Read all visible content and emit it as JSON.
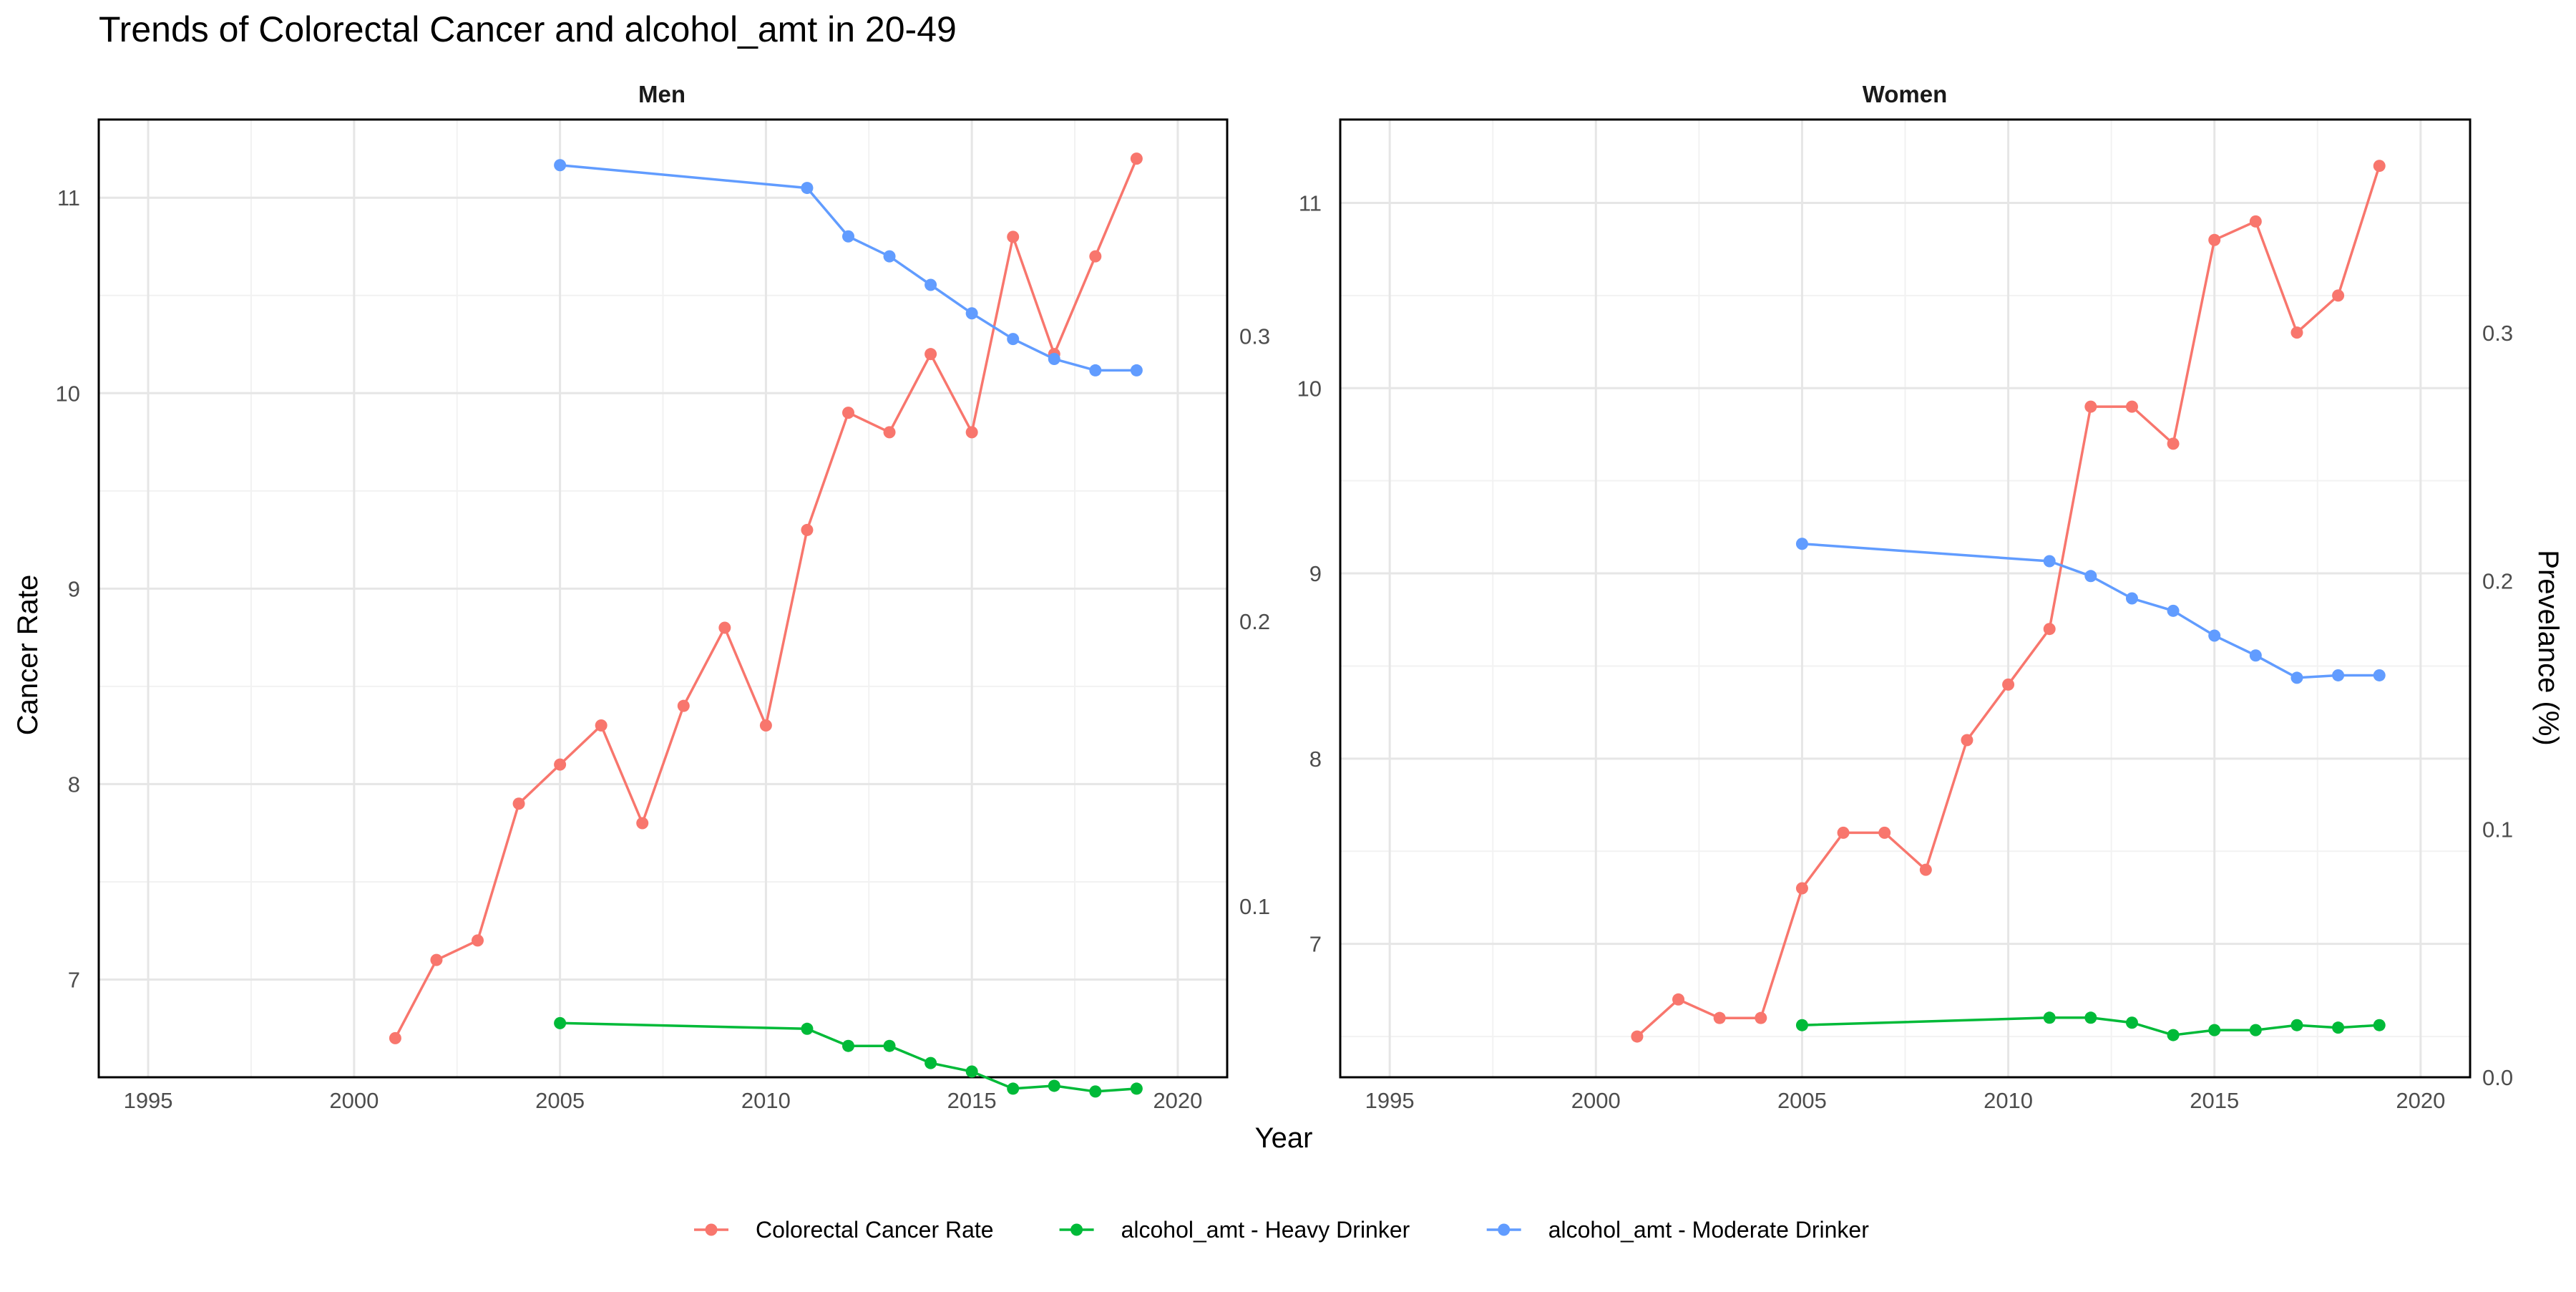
{
  "title": "Trends of Colorectal Cancer and alcohol_amt in 20-49",
  "xlabel": "Year",
  "ylabel_left": "Cancer Rate",
  "ylabel_right": "Prevelance (%)",
  "colors": {
    "cancer": "#F8766D",
    "heavy": "#00BA38",
    "moderate": "#619CFF"
  },
  "legend": [
    {
      "key": "cancer",
      "label": "Colorectal Cancer Rate"
    },
    {
      "key": "heavy",
      "label": "alcohol_amt - Heavy Drinker"
    },
    {
      "key": "moderate",
      "label": "alcohol_amt - Moderate Drinker"
    }
  ],
  "chart_data": [
    {
      "type": "line",
      "panel": "Men",
      "xlim": [
        1993.8,
        2021.2
      ],
      "x_ticks": [
        1995,
        2000,
        2005,
        2010,
        2015,
        2020
      ],
      "y_left_lim": [
        6.5,
        11.4
      ],
      "y_left_ticks": [
        7,
        8,
        9,
        10,
        11
      ],
      "y_right_lim": [
        0.04,
        0.376
      ],
      "y_right_ticks": [
        0.1,
        0.2,
        0.3
      ],
      "series": [
        {
          "name": "Colorectal Cancer Rate",
          "key": "cancer",
          "axis": "left",
          "x": [
            2001,
            2002,
            2003,
            2004,
            2005,
            2006,
            2007,
            2008,
            2009,
            2010,
            2011,
            2012,
            2013,
            2014,
            2015,
            2016,
            2017,
            2018,
            2019
          ],
          "y": [
            6.7,
            7.1,
            7.2,
            7.9,
            8.1,
            8.3,
            7.8,
            8.4,
            8.8,
            8.3,
            9.3,
            9.9,
            9.8,
            10.2,
            9.8,
            10.8,
            10.2,
            10.7,
            11.2
          ]
        },
        {
          "name": "alcohol_amt - Heavy Drinker",
          "key": "heavy",
          "axis": "right",
          "x": [
            2005,
            2011,
            2012,
            2013,
            2014,
            2015,
            2016,
            2017,
            2018,
            2019
          ],
          "y": [
            0.059,
            0.057,
            0.051,
            0.051,
            0.045,
            0.042,
            0.036,
            0.037,
            0.035,
            0.036
          ]
        },
        {
          "name": "alcohol_amt - Moderate Drinker",
          "key": "moderate",
          "axis": "right",
          "x": [
            2005,
            2011,
            2012,
            2013,
            2014,
            2015,
            2016,
            2017,
            2018,
            2019
          ],
          "y": [
            0.36,
            0.352,
            0.335,
            0.328,
            0.318,
            0.308,
            0.299,
            0.292,
            0.288,
            0.288
          ]
        }
      ]
    },
    {
      "type": "line",
      "panel": "Women",
      "xlim": [
        1993.8,
        2021.2
      ],
      "x_ticks": [
        1995,
        2000,
        2005,
        2010,
        2015,
        2020
      ],
      "y_left_lim": [
        6.28,
        11.45
      ],
      "y_left_ticks": [
        7,
        8,
        9,
        10,
        11
      ],
      "y_right_lim": [
        0.0,
        0.386
      ],
      "y_right_ticks": [
        0.0,
        0.1,
        0.2,
        0.3
      ],
      "series": [
        {
          "name": "Colorectal Cancer Rate",
          "key": "cancer",
          "axis": "left",
          "x": [
            2001,
            2002,
            2003,
            2004,
            2005,
            2006,
            2007,
            2008,
            2009,
            2010,
            2011,
            2012,
            2013,
            2014,
            2015,
            2016,
            2017,
            2018,
            2019
          ],
          "y": [
            6.5,
            6.7,
            6.6,
            6.6,
            7.3,
            7.6,
            7.6,
            7.4,
            8.1,
            8.4,
            8.7,
            9.9,
            9.9,
            9.7,
            10.8,
            10.9,
            10.3,
            10.5,
            11.2
          ]
        },
        {
          "name": "alcohol_amt - Heavy Drinker",
          "key": "heavy",
          "axis": "right",
          "x": [
            2005,
            2011,
            2012,
            2013,
            2014,
            2015,
            2016,
            2017,
            2018,
            2019
          ],
          "y": [
            0.021,
            0.024,
            0.024,
            0.022,
            0.017,
            0.019,
            0.019,
            0.021,
            0.02,
            0.021
          ]
        },
        {
          "name": "alcohol_amt - Moderate Drinker",
          "key": "moderate",
          "axis": "right",
          "x": [
            2005,
            2011,
            2012,
            2013,
            2014,
            2015,
            2016,
            2017,
            2018,
            2019
          ],
          "y": [
            0.215,
            0.208,
            0.202,
            0.193,
            0.188,
            0.178,
            0.17,
            0.161,
            0.162,
            0.162
          ]
        }
      ]
    }
  ]
}
